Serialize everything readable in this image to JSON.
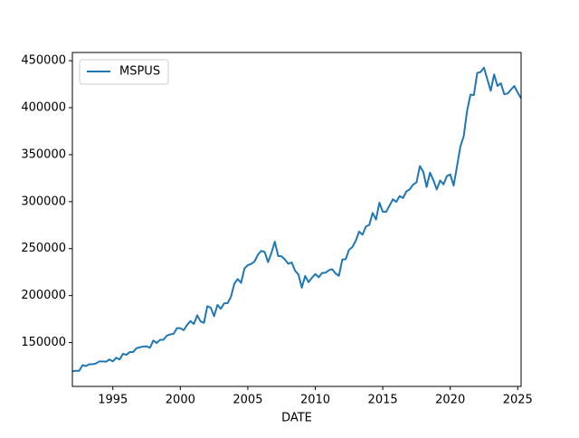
{
  "chart_data": {
    "type": "line",
    "x_label": "DATE",
    "x": [
      1992,
      1992.25,
      1992.5,
      1992.75,
      1993,
      1993.25,
      1993.5,
      1993.75,
      1994,
      1994.25,
      1994.5,
      1994.75,
      1995,
      1995.25,
      1995.5,
      1995.75,
      1996,
      1996.25,
      1996.5,
      1996.75,
      1997,
      1997.25,
      1997.5,
      1997.75,
      1998,
      1998.25,
      1998.5,
      1998.75,
      1999,
      1999.25,
      1999.5,
      1999.75,
      2000,
      2000.25,
      2000.5,
      2000.75,
      2001,
      2001.25,
      2001.5,
      2001.75,
      2002,
      2002.25,
      2002.5,
      2002.75,
      2003,
      2003.25,
      2003.5,
      2003.75,
      2004,
      2004.25,
      2004.5,
      2004.75,
      2005,
      2005.25,
      2005.5,
      2005.75,
      2006,
      2006.25,
      2006.5,
      2006.75,
      2007,
      2007.25,
      2007.5,
      2007.75,
      2008,
      2008.25,
      2008.5,
      2008.75,
      2009,
      2009.25,
      2009.5,
      2009.75,
      2010,
      2010.25,
      2010.5,
      2010.75,
      2011,
      2011.25,
      2011.5,
      2011.75,
      2012,
      2012.25,
      2012.5,
      2012.75,
      2013,
      2013.25,
      2013.5,
      2013.75,
      2014,
      2014.25,
      2014.5,
      2014.75,
      2015,
      2015.25,
      2015.5,
      2015.75,
      2016,
      2016.25,
      2016.5,
      2016.75,
      2017,
      2017.25,
      2017.5,
      2017.75,
      2018,
      2018.25,
      2018.5,
      2018.75,
      2019,
      2019.25,
      2019.5,
      2019.75,
      2020,
      2020.25,
      2020.5,
      2020.75,
      2021,
      2021.25,
      2021.5,
      2021.75,
      2022,
      2022.25,
      2022.5,
      2022.75,
      2023,
      2023.25,
      2023.5,
      2023.75,
      2024,
      2024.25,
      2024.5,
      2024.75,
      2025,
      2025.25
    ],
    "series": [
      {
        "name": "MSPUS",
        "color": "#1f77b4",
        "values": [
          119500,
          120000,
          120000,
          126000,
          125000,
          127000,
          127000,
          127800,
          130000,
          130000,
          129700,
          132000,
          130000,
          133900,
          132000,
          138000,
          137000,
          139900,
          140000,
          144000,
          145000,
          145800,
          146000,
          144500,
          152200,
          149500,
          153000,
          153000,
          157400,
          158700,
          159400,
          165300,
          165300,
          163200,
          168800,
          172900,
          169800,
          179000,
          172500,
          171100,
          188700,
          187200,
          178100,
          190100,
          186000,
          191800,
          191900,
          198800,
          212700,
          217600,
          213500,
          228800,
          232500,
          233700,
          236400,
          243600,
          247700,
          246300,
          235600,
          245400,
          257400,
          242200,
          241800,
          238400,
          233900,
          235300,
          226500,
          222500,
          208400,
          220900,
          214300,
          219000,
          222900,
          219500,
          224100,
          224300,
          226900,
          228100,
          223500,
          221100,
          238400,
          238700,
          248800,
          251700,
          258400,
          268100,
          264800,
          273600,
          275200,
          288000,
          281000,
          298900,
          289200,
          289100,
          295800,
          302500,
          299800,
          306000,
          303800,
          310900,
          313100,
          318200,
          320500,
          337900,
          331800,
          315600,
          330900,
          322800,
          313000,
          322500,
          318400,
          327100,
          329000,
          317100,
          337500,
          358700,
          369800,
          397000,
          414000,
          413500,
          437000,
          438000,
          442600,
          430000,
          418000,
          435400,
          423200,
          426000,
          414400,
          415000,
          419300,
          423100,
          416000,
          410000
        ]
      }
    ],
    "xlim": [
      1992,
      2025.25
    ],
    "ylim": [
      103345,
      458755
    ],
    "xticks": [
      1995,
      2000,
      2005,
      2010,
      2015,
      2020,
      2025
    ],
    "yticks": [
      150000,
      200000,
      250000,
      300000,
      350000,
      400000,
      450000
    ],
    "legend": "upper left"
  }
}
